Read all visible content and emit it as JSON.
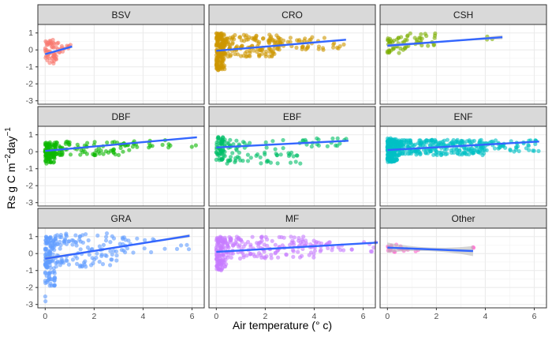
{
  "chart_data": {
    "type": "scatter",
    "facet_layout": "3x3",
    "xlabel": "Air temperature (° c)",
    "ylabel": "Rs g C m^-2 day^-1",
    "ylabel_parts": {
      "main": "Rs g C m",
      "exp1": "−2",
      "mid": "day",
      "exp2": "−1"
    },
    "xlim": [
      -0.3,
      6.5
    ],
    "ylim": [
      -3.2,
      1.5
    ],
    "xticks": [
      0,
      2,
      4,
      6
    ],
    "yticks": [
      1,
      0,
      -1,
      -2,
      -3
    ],
    "grid": true,
    "legend": "none",
    "trend_color": "#3366FF",
    "band_color": "#B8B8B8",
    "panels": [
      {
        "name": "BSV",
        "color": "#F8766D",
        "trend": {
          "x": [
            0.0,
            1.1
          ],
          "y": [
            -0.25,
            0.2
          ]
        },
        "band_width": 0.08,
        "clusters": [
          {
            "x": [
              0,
              0.6
            ],
            "y": [
              -0.8,
              0.6
            ],
            "n": 55
          },
          {
            "x": [
              0.6,
              1.2
            ],
            "y": [
              -0.1,
              0.3
            ],
            "n": 10
          }
        ]
      },
      {
        "name": "CRO",
        "color": "#CD9600",
        "trend": {
          "x": [
            0.0,
            5.3
          ],
          "y": [
            -0.05,
            0.6
          ]
        },
        "band_width": 0.05,
        "clusters": [
          {
            "x": [
              0,
              0.35
            ],
            "y": [
              -1.2,
              1.0
            ],
            "n": 160
          },
          {
            "x": [
              0.3,
              2.5
            ],
            "y": [
              -0.4,
              0.9
            ],
            "n": 130
          },
          {
            "x": [
              2.5,
              5.4
            ],
            "y": [
              0.0,
              0.8
            ],
            "n": 55
          }
        ]
      },
      {
        "name": "CSH",
        "color": "#7CAE00",
        "trend": {
          "x": [
            0.0,
            4.7
          ],
          "y": [
            0.25,
            0.75
          ]
        },
        "band_width": 0.12,
        "clusters": [
          {
            "x": [
              0,
              0.8
            ],
            "y": [
              -0.2,
              0.8
            ],
            "n": 40
          },
          {
            "x": [
              0.8,
              2.0
            ],
            "y": [
              0.2,
              1.0
            ],
            "n": 25
          },
          {
            "x": [
              4.0,
              4.7
            ],
            "y": [
              0.3,
              0.8
            ],
            "n": 3
          }
        ]
      },
      {
        "name": "DBF",
        "color": "#0CB702",
        "trend": {
          "x": [
            0.0,
            6.2
          ],
          "y": [
            0.05,
            0.85
          ]
        },
        "band_width": 0.05,
        "clusters": [
          {
            "x": [
              0,
              0.4
            ],
            "y": [
              -0.7,
              0.6
            ],
            "n": 90
          },
          {
            "x": [
              0.4,
              3.5
            ],
            "y": [
              -0.2,
              0.6
            ],
            "n": 90
          },
          {
            "x": [
              3.5,
              6.2
            ],
            "y": [
              0.2,
              0.7
            ],
            "n": 18
          }
        ]
      },
      {
        "name": "EBF",
        "color": "#00BE67",
        "trend": {
          "x": [
            0.0,
            5.4
          ],
          "y": [
            0.25,
            0.65
          ]
        },
        "band_width": 0.05,
        "clusters": [
          {
            "x": [
              0,
              0.35
            ],
            "y": [
              -0.5,
              1.0
            ],
            "n": 60
          },
          {
            "x": [
              0.3,
              3.5
            ],
            "y": [
              -0.7,
              0.7
            ],
            "n": 70
          },
          {
            "x": [
              3.5,
              5.4
            ],
            "y": [
              0.3,
              0.8
            ],
            "n": 20
          }
        ]
      },
      {
        "name": "ENF",
        "color": "#00BFC4",
        "trend": {
          "x": [
            0.0,
            6.2
          ],
          "y": [
            0.1,
            0.6
          ]
        },
        "band_width": 0.05,
        "clusters": [
          {
            "x": [
              0,
              0.4
            ],
            "y": [
              -0.6,
              0.8
            ],
            "n": 200
          },
          {
            "x": [
              0.4,
              4.0
            ],
            "y": [
              -0.2,
              0.7
            ],
            "n": 260
          },
          {
            "x": [
              4.0,
              6.2
            ],
            "y": [
              0.0,
              0.7
            ],
            "n": 50
          }
        ]
      },
      {
        "name": "GRA",
        "color": "#619CFF",
        "trend": {
          "x": [
            0.0,
            5.9
          ],
          "y": [
            -0.3,
            1.05
          ]
        },
        "band_width": 0.1,
        "clusters": [
          {
            "x": [
              0,
              0.4
            ],
            "y": [
              -1.9,
              1.0
            ],
            "n": 120
          },
          {
            "x": [
              0.4,
              3.0
            ],
            "y": [
              -0.8,
              1.2
            ],
            "n": 110
          },
          {
            "x": [
              3.0,
              6.0
            ],
            "y": [
              -0.1,
              1.0
            ],
            "n": 25
          },
          {
            "x": [
              0,
              0.2
            ],
            "y": [
              -3.0,
              -2.5
            ],
            "n": 2
          }
        ]
      },
      {
        "name": "MF",
        "color": "#C77CFF",
        "trend": {
          "x": [
            0.0,
            6.6
          ],
          "y": [
            0.1,
            0.65
          ]
        },
        "band_width": 0.05,
        "clusters": [
          {
            "x": [
              0,
              0.4
            ],
            "y": [
              -1.0,
              1.0
            ],
            "n": 110
          },
          {
            "x": [
              0.4,
              4.0
            ],
            "y": [
              -0.3,
              1.0
            ],
            "n": 140
          },
          {
            "x": [
              4.0,
              6.6
            ],
            "y": [
              0.1,
              0.7
            ],
            "n": 30
          }
        ]
      },
      {
        "name": "Other",
        "color": "#FF61CC",
        "trend": {
          "x": [
            0.0,
            3.5
          ],
          "y": [
            0.35,
            0.15
          ]
        },
        "band_width": 0.3,
        "clusters": [
          {
            "x": [
              0,
              0.6
            ],
            "y": [
              0.1,
              0.6
            ],
            "n": 14
          },
          {
            "x": [
              0.6,
              1.6
            ],
            "y": [
              0.1,
              0.3
            ],
            "n": 6
          },
          {
            "x": [
              3.3,
              3.6
            ],
            "y": [
              0.2,
              0.45
            ],
            "n": 2
          }
        ]
      }
    ]
  }
}
